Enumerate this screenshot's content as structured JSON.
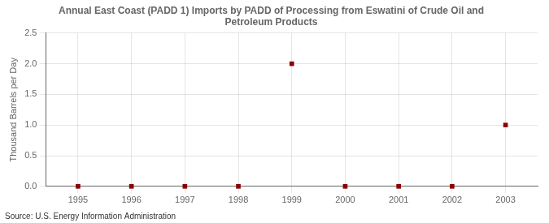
{
  "chart_data": {
    "type": "scatter",
    "title": "Annual East Coast (PADD 1) Imports by PADD of Processing from Eswatini of Crude Oil and\nPetroleum Products",
    "ylabel": "Thousand Barrels per Day",
    "annotations": [
      "Source: U.S. Energy Information Administration"
    ],
    "x": [
      1995,
      1996,
      1997,
      1998,
      1999,
      2000,
      2001,
      2002,
      2003
    ],
    "values": [
      0,
      0,
      0,
      0,
      2.0,
      0,
      0,
      0,
      1.0
    ],
    "color": "#8b0000",
    "marker": "square",
    "xlim": [
      1994.4,
      2003.6
    ],
    "ylim": [
      0,
      2.5
    ],
    "xticks": [
      1995,
      1996,
      1997,
      1998,
      1999,
      2000,
      2001,
      2002,
      2003
    ],
    "yticks": [
      {
        "value": 0,
        "label": "0.0"
      },
      0.5,
      {
        "value": 1,
        "label": "1.0"
      },
      1.5,
      {
        "value": 2,
        "label": "2.0"
      },
      2.5
    ],
    "grid": true
  }
}
